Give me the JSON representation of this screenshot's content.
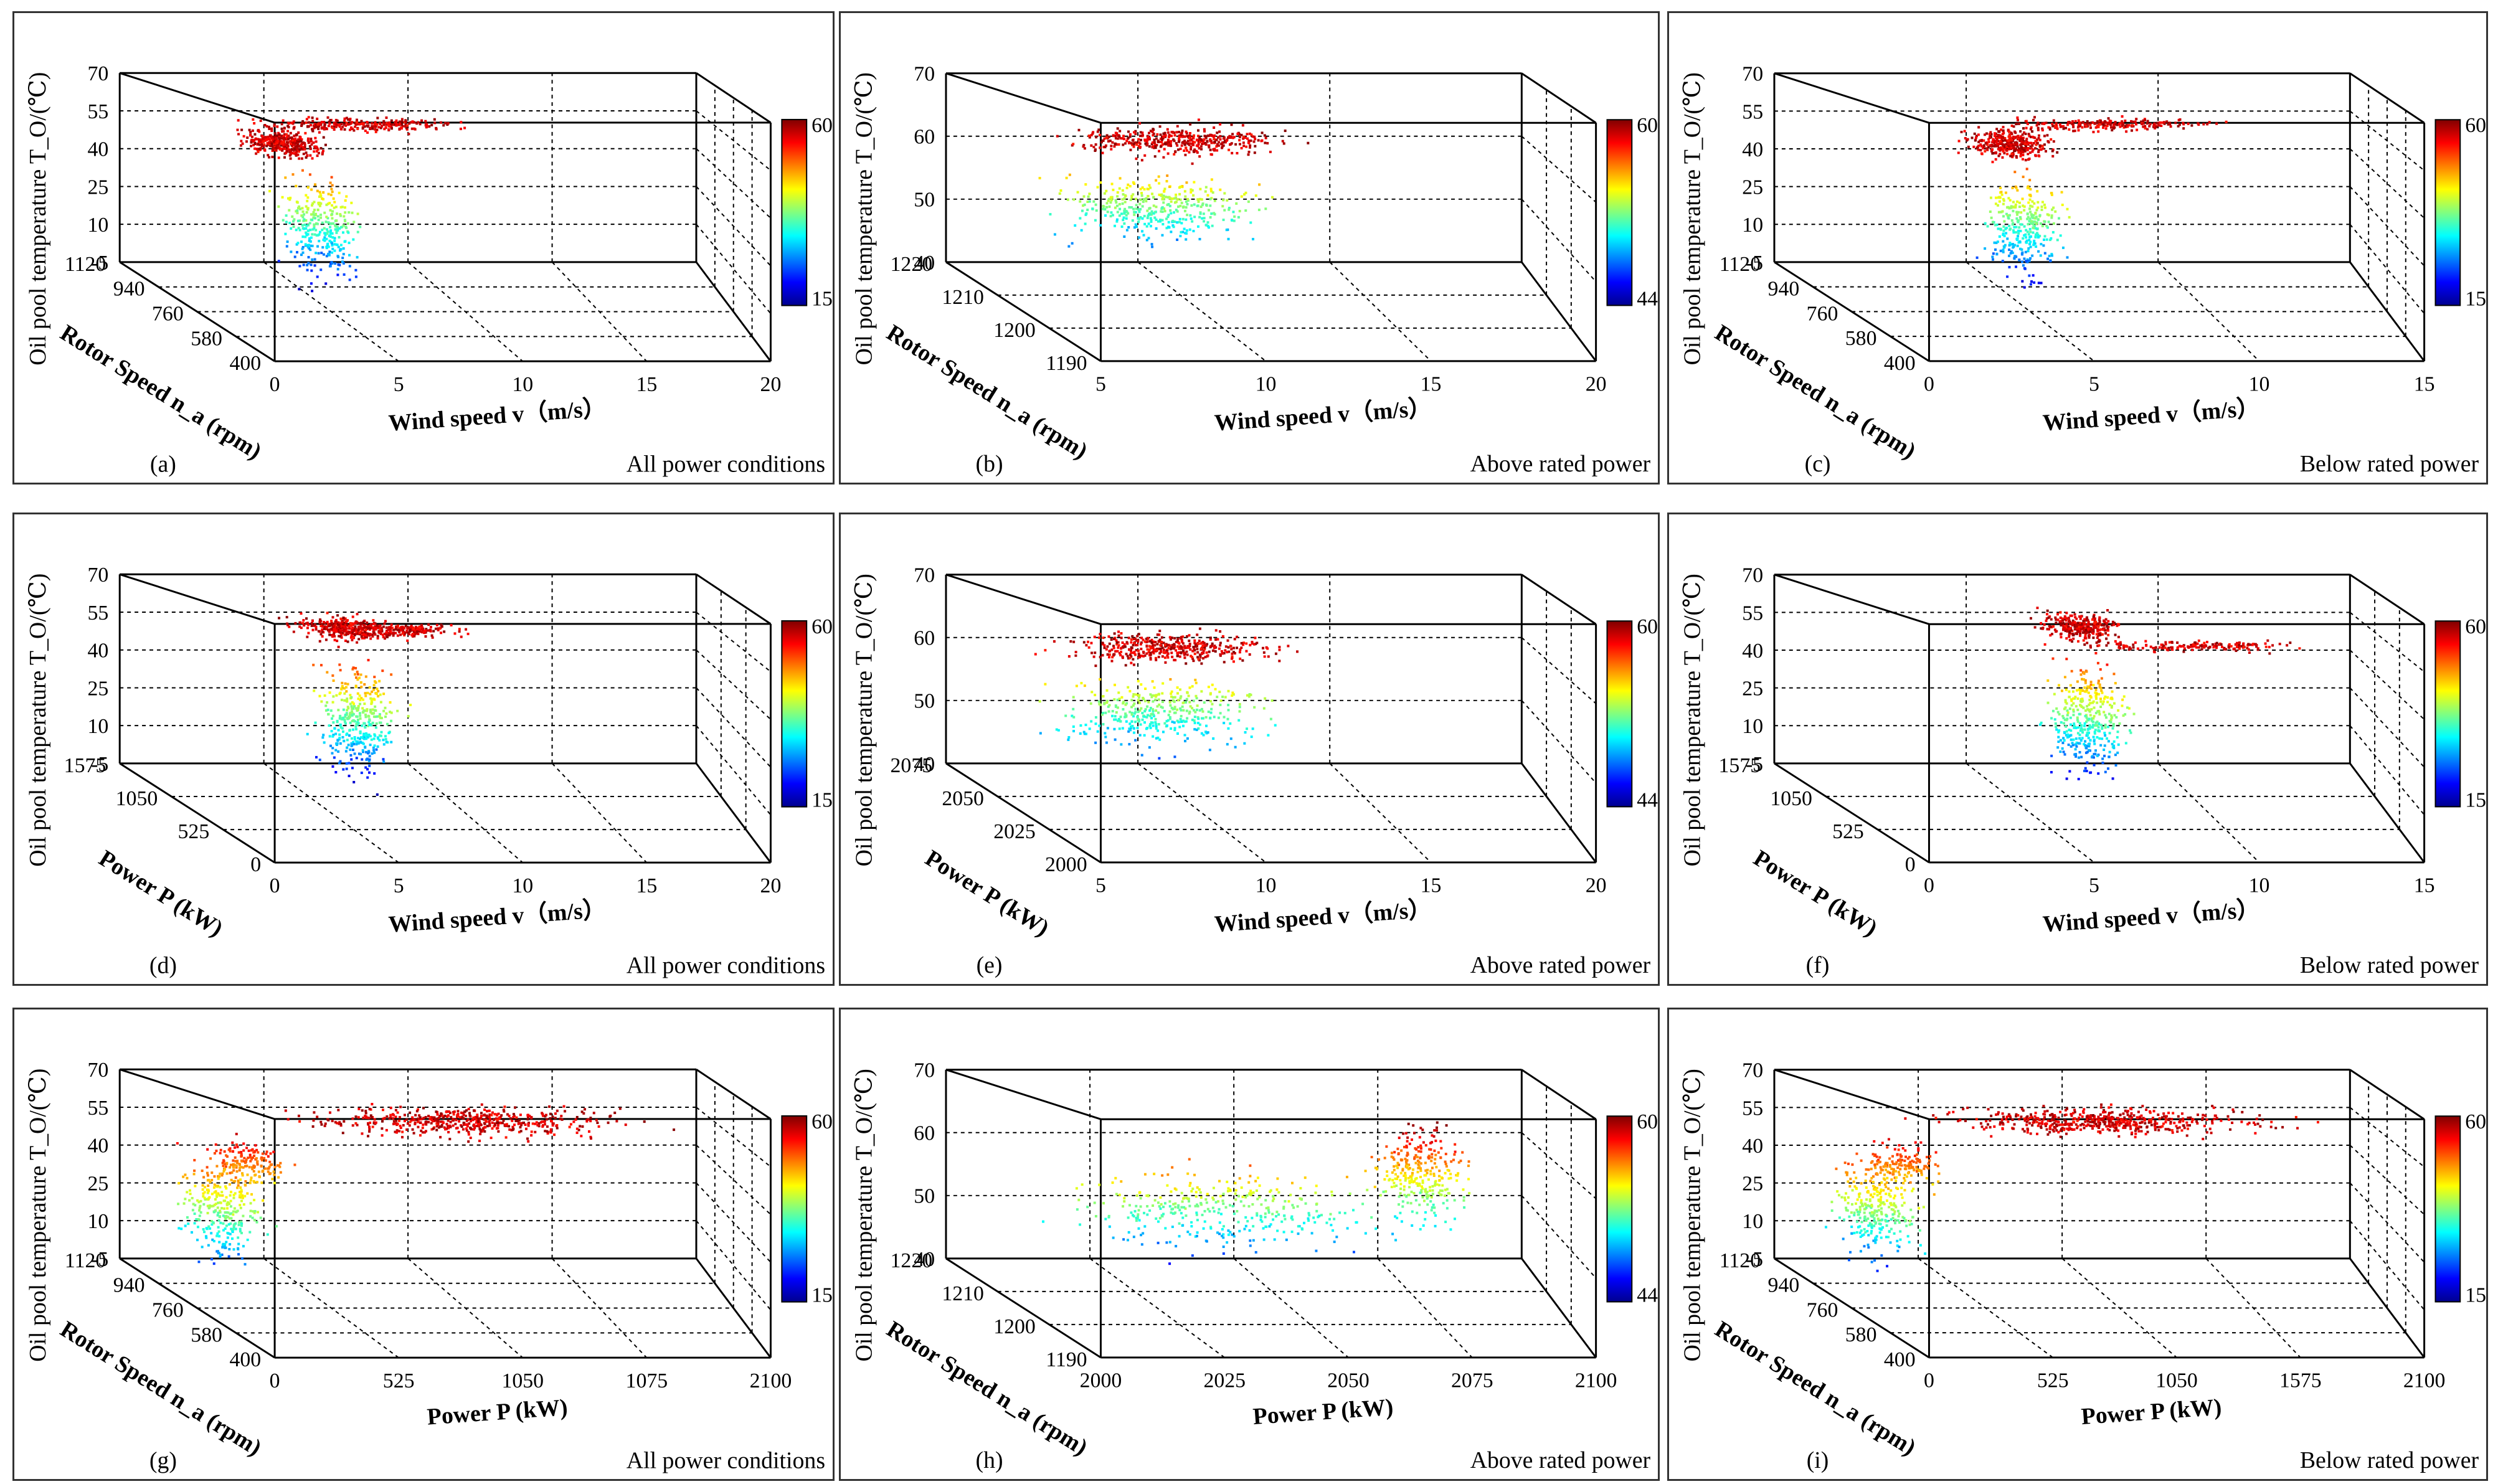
{
  "colorscale": [
    "#00008f",
    "#0000ff",
    "#0080ff",
    "#00ffff",
    "#80ff80",
    "#ffff00",
    "#ff8000",
    "#ff0000",
    "#800000"
  ],
  "chart_data": [
    {
      "id": "a",
      "type": "scatter3d",
      "panel_label": "(a)",
      "condition": "All power conditions",
      "xlabel": "Wind speed v（m/s）",
      "ylabel": "Rotor Speed n_a (rpm)",
      "zlabel": "Oil pool temperature T_O/(℃)",
      "xticks": [
        "0",
        "5",
        "10",
        "15",
        "20"
      ],
      "yticks": [
        "400",
        "580",
        "760",
        "940",
        "1120"
      ],
      "zticks": [
        "-5",
        "10",
        "25",
        "40",
        "55",
        "70"
      ],
      "xlim": [
        0,
        20
      ],
      "ylim": [
        400,
        1120
      ],
      "zlim": [
        -5,
        70
      ],
      "colorbar": {
        "min": "15",
        "max": "60"
      }
    },
    {
      "id": "b",
      "type": "scatter3d",
      "panel_label": "(b)",
      "condition": "Above rated power",
      "xlabel": "Wind speed v（m/s）",
      "ylabel": "Rotor Speed n_a (rpm)",
      "zlabel": "Oil pool temperature T_O/(℃)",
      "xticks": [
        "5",
        "10",
        "15",
        "20"
      ],
      "yticks": [
        "1190",
        "1200",
        "1210",
        "1220"
      ],
      "zticks": [
        "40",
        "50",
        "60",
        "70"
      ],
      "xlim": [
        5,
        20
      ],
      "ylim": [
        1190,
        1220
      ],
      "zlim": [
        40,
        70
      ],
      "colorbar": {
        "min": "44",
        "max": "60"
      }
    },
    {
      "id": "c",
      "type": "scatter3d",
      "panel_label": "(c)",
      "condition": "Below rated power",
      "xlabel": "Wind speed v（m/s）",
      "ylabel": "Rotor Speed n_a (rpm)",
      "zlabel": "Oil pool temperature T_O/(℃)",
      "xticks": [
        "0",
        "5",
        "10",
        "15"
      ],
      "yticks": [
        "400",
        "580",
        "760",
        "940",
        "1120"
      ],
      "zticks": [
        "-5",
        "10",
        "25",
        "40",
        "55",
        "70"
      ],
      "xlim": [
        0,
        15
      ],
      "ylim": [
        400,
        1120
      ],
      "zlim": [
        -5,
        70
      ],
      "colorbar": {
        "min": "15",
        "max": "60"
      }
    },
    {
      "id": "d",
      "type": "scatter3d",
      "panel_label": "(d)",
      "condition": "All power conditions",
      "xlabel": "Wind speed v（m/s）",
      "ylabel": "Power P (kW)",
      "zlabel": "Oil pool temperature T_O/(℃)",
      "xticks": [
        "0",
        "5",
        "10",
        "15",
        "20"
      ],
      "yticks": [
        "0",
        "525",
        "1050",
        "1575"
      ],
      "zticks": [
        "-5",
        "10",
        "25",
        "40",
        "55",
        "70"
      ],
      "xlim": [
        0,
        20
      ],
      "ylim": [
        0,
        2100
      ],
      "zlim": [
        -5,
        70
      ],
      "colorbar": {
        "min": "15",
        "max": "60"
      }
    },
    {
      "id": "e",
      "type": "scatter3d",
      "panel_label": "(e)",
      "condition": "Above rated power",
      "xlabel": "Wind speed v（m/s）",
      "ylabel": "Power P (kW)",
      "zlabel": "Oil pool temperature T_O/(℃)",
      "xticks": [
        "5",
        "10",
        "15",
        "20"
      ],
      "yticks": [
        "2000",
        "2025",
        "2050",
        "2075"
      ],
      "zticks": [
        "40",
        "50",
        "60",
        "70"
      ],
      "xlim": [
        5,
        20
      ],
      "ylim": [
        2000,
        2100
      ],
      "zlim": [
        40,
        70
      ],
      "colorbar": {
        "min": "44",
        "max": "60"
      }
    },
    {
      "id": "f",
      "type": "scatter3d",
      "panel_label": "(f)",
      "condition": "Below rated power",
      "xlabel": "Wind speed v（m/s）",
      "ylabel": "Power P (kW)",
      "zlabel": "Oil pool temperature T_O/(℃)",
      "xticks": [
        "0",
        "5",
        "10",
        "15"
      ],
      "yticks": [
        "0",
        "525",
        "1050",
        "1575"
      ],
      "zticks": [
        "-5",
        "10",
        "25",
        "40",
        "55",
        "70"
      ],
      "xlim": [
        0,
        15
      ],
      "ylim": [
        0,
        2100
      ],
      "zlim": [
        -5,
        70
      ],
      "colorbar": {
        "min": "15",
        "max": "60"
      }
    },
    {
      "id": "g",
      "type": "scatter3d",
      "panel_label": "(g)",
      "condition": "All power conditions",
      "xlabel": "Power P (kW)",
      "ylabel": "Rotor Speed n_a (rpm)",
      "zlabel": "Oil pool temperature T_O/(℃)",
      "xticks": [
        "0",
        "525",
        "1050",
        "1075",
        "2100"
      ],
      "yticks": [
        "400",
        "580",
        "760",
        "940",
        "1120"
      ],
      "zticks": [
        "-5",
        "10",
        "25",
        "40",
        "55",
        "70"
      ],
      "xlim": [
        0,
        2100
      ],
      "ylim": [
        400,
        1120
      ],
      "zlim": [
        -5,
        70
      ],
      "colorbar": {
        "min": "15",
        "max": "60"
      }
    },
    {
      "id": "h",
      "type": "scatter3d",
      "panel_label": "(h)",
      "condition": "Above rated power",
      "xlabel": "Power P (kW)",
      "ylabel": "Rotor Speed n_a (rpm)",
      "zlabel": "Oil pool temperature T_O/(℃)",
      "xticks": [
        "2000",
        "2025",
        "2050",
        "2075",
        "2100"
      ],
      "yticks": [
        "1190",
        "1200",
        "1210",
        "1220"
      ],
      "zticks": [
        "40",
        "50",
        "60",
        "70"
      ],
      "xlim": [
        2000,
        2100
      ],
      "ylim": [
        1190,
        1220
      ],
      "zlim": [
        40,
        70
      ],
      "colorbar": {
        "min": "44",
        "max": "60"
      }
    },
    {
      "id": "i",
      "type": "scatter3d",
      "panel_label": "(i)",
      "condition": "Below rated power",
      "xlabel": "Power P (kW)",
      "ylabel": "Rotor Speed n_a (rpm)",
      "zlabel": "Oil pool temperature T_O/(℃)",
      "xticks": [
        "0",
        "525",
        "1050",
        "1575",
        "2100"
      ],
      "yticks": [
        "400",
        "580",
        "760",
        "940",
        "1120"
      ],
      "zticks": [
        "-5",
        "10",
        "25",
        "40",
        "55",
        "70"
      ],
      "xlim": [
        0,
        2100
      ],
      "ylim": [
        400,
        1120
      ],
      "zlim": [
        -5,
        70
      ],
      "colorbar": {
        "min": "15",
        "max": "60"
      }
    }
  ]
}
